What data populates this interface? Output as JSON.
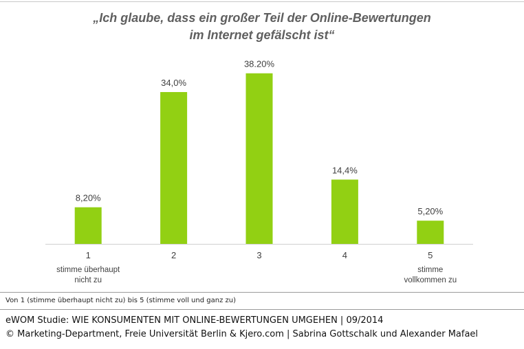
{
  "chart_data": {
    "type": "bar",
    "title_line1": "„Ich glaube, dass ein großer Teil der Online-Bewertungen",
    "title_line2": "im Internet gefälscht ist“",
    "categories": [
      "1",
      "2",
      "3",
      "4",
      "5"
    ],
    "values": [
      8.2,
      34.0,
      38.2,
      14.4,
      5.2
    ],
    "data_labels": [
      "8,20%",
      "34,0%",
      "38.20%",
      "14,4%",
      "5,20%"
    ],
    "category_descriptions": [
      [
        "stimme überhaupt",
        "nicht zu"
      ],
      [],
      [],
      [],
      [
        "stimme",
        "vollkommen zu"
      ]
    ],
    "ylim": [
      0,
      40
    ],
    "grid": false,
    "bar_color": "#92d013"
  },
  "footer": {
    "note": "Von 1 (stimme überhaupt nicht zu) bis 5 (stimme voll und ganz zu)",
    "line1": "eWOM Studie: WIE KONSUMENTEN MIT ONLINE-BEWERTUNGEN UMGEHEN | 09/2014",
    "line2": "© Marketing-Department, Freie Universität Berlin & Kjero.com | Sabrina Gottschalk und Alexander Mafael"
  }
}
